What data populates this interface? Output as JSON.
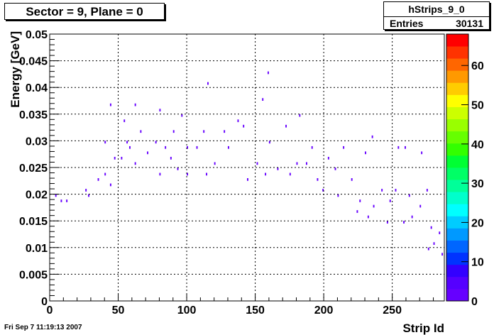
{
  "title": "Sector = 9, Plane = 0",
  "stats": {
    "name": "hStrips_9_0",
    "entries_label": "Entries",
    "entries_value": "30131"
  },
  "footer": {
    "timestamp": "Fri Sep  7 11:19:13 2007"
  },
  "chart_data": {
    "type": "heatmap",
    "title": "Sector = 9, Plane = 0",
    "xlabel": "Strip Id",
    "ylabel": "Energy [GeV]",
    "xlim": [
      0,
      288
    ],
    "ylim": [
      0,
      0.05
    ],
    "x_ticks": [
      0,
      50,
      100,
      150,
      200,
      250
    ],
    "x_tick_labels": [
      "0",
      "50",
      "100",
      "150",
      "200",
      "250"
    ],
    "y_ticks": [
      0,
      0.005,
      0.01,
      0.015,
      0.02,
      0.025,
      0.03,
      0.035,
      0.04,
      0.045,
      0.05
    ],
    "y_tick_labels": [
      "0",
      "0.005",
      "0.01",
      "0.015",
      "0.02",
      "0.025",
      "0.03",
      "0.035",
      "0.04",
      "0.045",
      "0.05"
    ],
    "grid": true,
    "x_bins": 288,
    "y_bin_width": 0.0005,
    "z_range": [
      0,
      68
    ],
    "z_ticks": [
      0,
      10,
      20,
      30,
      40,
      50,
      60
    ],
    "z_tick_labels": [
      "0",
      "10",
      "20",
      "30",
      "40",
      "50",
      "60"
    ],
    "colors": [
      "#6600ff",
      "#5500ff",
      "#3300ff",
      "#0033ff",
      "#0066ff",
      "#0099ff",
      "#00ccff",
      "#00ffff",
      "#00ffcc",
      "#00ff99",
      "#00ff66",
      "#00ff33",
      "#33ff00",
      "#66ff00",
      "#99ff00",
      "#ccff00",
      "#ffff00",
      "#ffcc00",
      "#ff9900",
      "#ff6600",
      "#ff3300",
      "#ff0000"
    ],
    "legend": "colorbar-right",
    "sparse_cells": [
      [
        44,
        0.0365
      ],
      [
        62,
        0.0365
      ],
      [
        80,
        0.0355
      ],
      [
        96,
        0.0345
      ],
      [
        115,
        0.0405
      ],
      [
        159,
        0.0425
      ],
      [
        155,
        0.0375
      ],
      [
        137,
        0.0335
      ],
      [
        182,
        0.0345
      ],
      [
        54,
        0.0335
      ],
      [
        66,
        0.0315
      ],
      [
        90,
        0.0315
      ],
      [
        112,
        0.0315
      ],
      [
        127,
        0.0315
      ],
      [
        141,
        0.0325
      ],
      [
        172,
        0.0325
      ],
      [
        235,
        0.0305
      ],
      [
        40,
        0.0295
      ],
      [
        56,
        0.0295
      ],
      [
        77,
        0.0295
      ],
      [
        84,
        0.0285
      ],
      [
        100,
        0.0285
      ],
      [
        107,
        0.0285
      ],
      [
        130,
        0.0285
      ],
      [
        160,
        0.0295
      ],
      [
        214,
        0.0285
      ],
      [
        230,
        0.0275
      ],
      [
        254,
        0.0285
      ],
      [
        259,
        0.0285
      ],
      [
        271,
        0.0275
      ],
      [
        191,
        0.0285
      ],
      [
        203,
        0.0265
      ],
      [
        47,
        0.0265
      ],
      [
        52,
        0.0265
      ],
      [
        58,
        0.0285
      ],
      [
        62,
        0.0255
      ],
      [
        71,
        0.0275
      ],
      [
        88,
        0.0265
      ],
      [
        93,
        0.0245
      ],
      [
        120,
        0.0255
      ],
      [
        151,
        0.0255
      ],
      [
        166,
        0.0245
      ],
      [
        180,
        0.0255
      ],
      [
        187,
        0.0255
      ],
      [
        208,
        0.0245
      ],
      [
        40,
        0.0235
      ],
      [
        35,
        0.0225
      ],
      [
        44,
        0.0215
      ],
      [
        80,
        0.0235
      ],
      [
        100,
        0.0235
      ],
      [
        114,
        0.0235
      ],
      [
        144,
        0.0225
      ],
      [
        157,
        0.0235
      ],
      [
        175,
        0.0235
      ],
      [
        195,
        0.0225
      ],
      [
        220,
        0.0225
      ],
      [
        242,
        0.0205
      ],
      [
        252,
        0.0205
      ],
      [
        262,
        0.0195
      ],
      [
        275,
        0.0205
      ],
      [
        26,
        0.0205
      ],
      [
        28,
        0.0195
      ],
      [
        4,
        0.0195
      ],
      [
        8,
        0.0185
      ],
      [
        12,
        0.0185
      ],
      [
        199,
        0.0205
      ],
      [
        210,
        0.0195
      ],
      [
        226,
        0.0185
      ],
      [
        236,
        0.0175
      ],
      [
        248,
        0.0185
      ],
      [
        270,
        0.0175
      ],
      [
        224,
        0.0165
      ],
      [
        232,
        0.0155
      ],
      [
        246,
        0.0145
      ],
      [
        258,
        0.0145
      ],
      [
        264,
        0.0155
      ],
      [
        278,
        0.0135
      ],
      [
        284,
        0.0125
      ],
      [
        280,
        0.0105
      ],
      [
        276,
        0.0095
      ],
      [
        286,
        0.0085
      ]
    ]
  }
}
